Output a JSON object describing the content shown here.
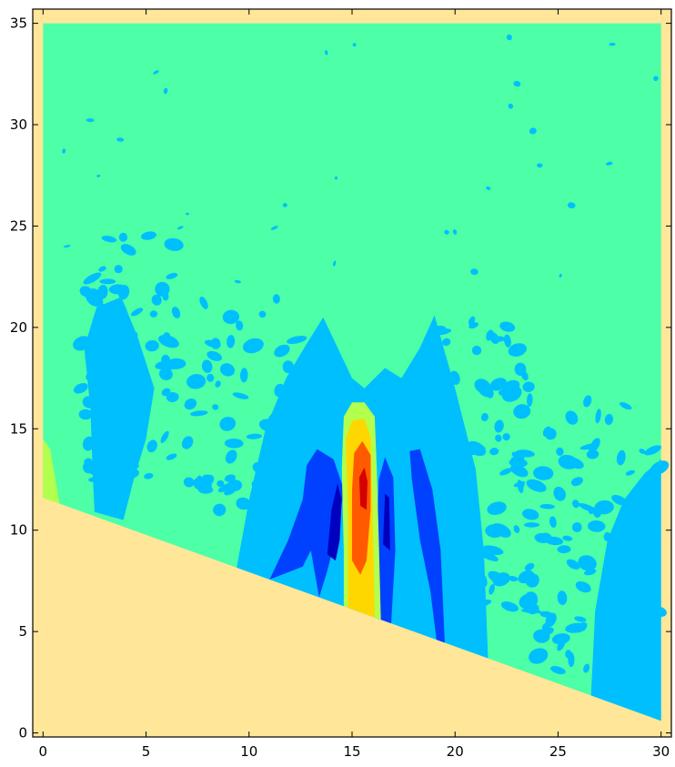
{
  "chart_data": {
    "type": "contour",
    "title": "",
    "xlabel": "",
    "ylabel": "",
    "xlim": [
      -0.5,
      30.5
    ],
    "ylim": [
      -0.2,
      35.7
    ],
    "x_ticks": [
      0,
      5,
      10,
      15,
      20,
      25,
      30
    ],
    "y_ticks": [
      0,
      5,
      10,
      15,
      20,
      25,
      30,
      35
    ],
    "grid": false,
    "colors": {
      "background": "#ffe699",
      "ambient_level": "#4dffa6",
      "light_negative": "#00bfff",
      "medium_negative": "#0040ff",
      "strong_negative": "#0000c0",
      "light_positive": "#b3ff4d",
      "medium_positive": "#ffd700",
      "strong_positive": "#ff5a00",
      "peak_positive": "#d50000"
    },
    "domain_boundary": {
      "top_y": 35,
      "x_range": [
        0,
        30
      ],
      "bottom_left": [
        0,
        11.6
      ],
      "bottom_right": [
        30,
        0.6
      ]
    },
    "features": {
      "central_positive_plume": {
        "x_center": 15.5,
        "y_range": [
          6.0,
          16.3
        ],
        "peak": [
          15.5,
          12.0
        ]
      },
      "flanking_negative_bands": [
        {
          "x_range": [
            11.0,
            15.0
          ],
          "y_range": [
            7.0,
            14.5
          ]
        },
        {
          "x_range": [
            16.3,
            17.0
          ],
          "y_range": [
            6.0,
            13.5
          ]
        },
        {
          "x_range": [
            17.8,
            19.4
          ],
          "y_range": [
            4.5,
            14.0
          ]
        }
      ],
      "left_edge_positive_patch": {
        "x_range": [
          0,
          0.8
        ],
        "y_range": [
          11.6,
          14.5
        ]
      }
    }
  }
}
